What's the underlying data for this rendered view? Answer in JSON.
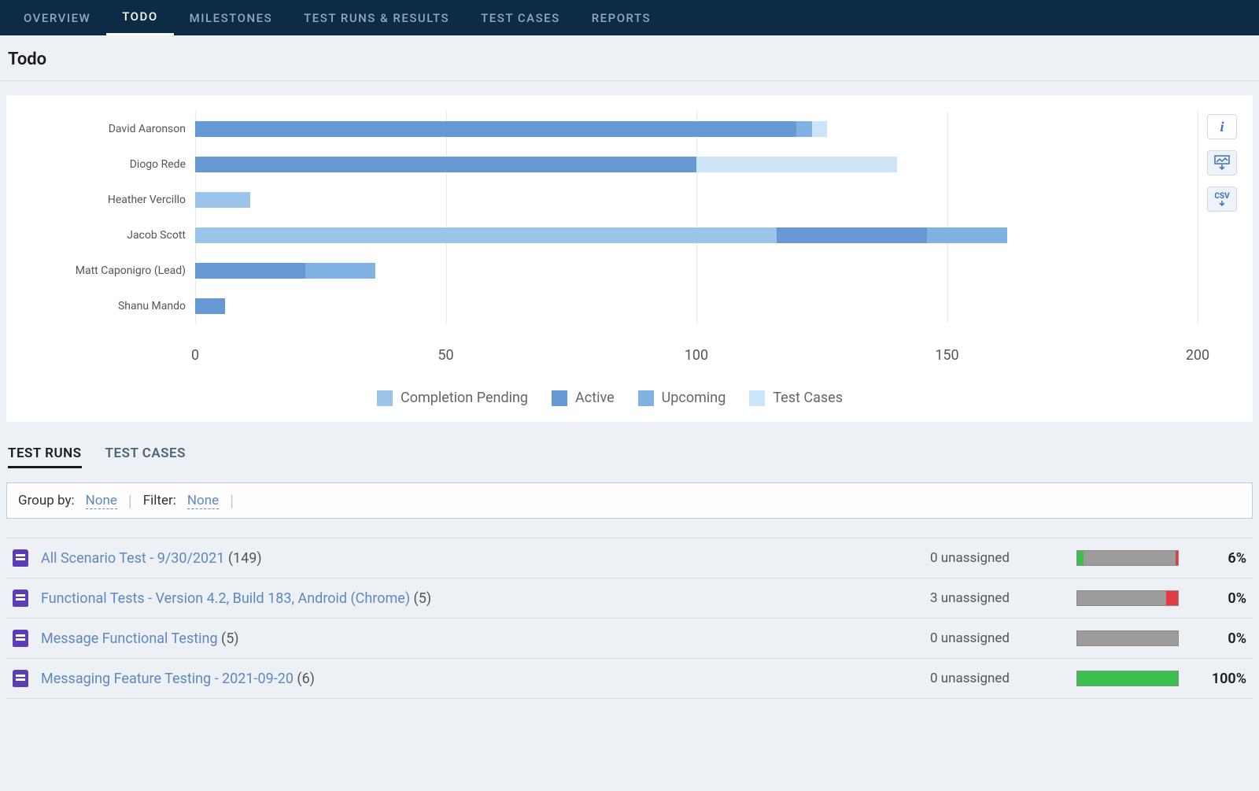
{
  "nav": {
    "items": [
      "OVERVIEW",
      "TODO",
      "MILESTONES",
      "TEST RUNS & RESULTS",
      "TEST CASES",
      "REPORTS"
    ],
    "active_index": 1
  },
  "page_title": "Todo",
  "chart": {
    "type": "stacked_horizontal_bar",
    "x_max": 200,
    "x_ticks": [
      0,
      50,
      100,
      150,
      200
    ],
    "grid_color": "#e8e8e8",
    "series": [
      {
        "label": "Completion Pending",
        "color": "#9cc3ea"
      },
      {
        "label": "Active",
        "color": "#6699d4"
      },
      {
        "label": "Upcoming",
        "color": "#7fb2e2"
      },
      {
        "label": "Test Cases",
        "color": "#cbe4f7"
      }
    ],
    "rows": [
      {
        "label": "David Aaronson",
        "values": [
          0,
          120,
          3,
          3
        ]
      },
      {
        "label": "Diogo Rede",
        "values": [
          0,
          100,
          0,
          40
        ]
      },
      {
        "label": "Heather Vercillo",
        "values": [
          11,
          0,
          0,
          0
        ]
      },
      {
        "label": "Jacob Scott",
        "values": [
          116,
          30,
          16,
          0
        ]
      },
      {
        "label": "Matt Caponigro (Lead)",
        "values": [
          0,
          22,
          14,
          0
        ]
      },
      {
        "label": "Shanu Mando",
        "values": [
          0,
          6,
          0,
          0
        ]
      }
    ],
    "label_color": "#555",
    "label_fontsize": 14,
    "tick_fontsize": 18,
    "legend_fontsize": 18
  },
  "chart_actions": {
    "info": "i",
    "image": "IMG",
    "csv": "CSV"
  },
  "sub_tabs": {
    "items": [
      "TEST RUNS",
      "TEST CASES"
    ],
    "active_index": 0
  },
  "filter_bar": {
    "group_by_label": "Group by:",
    "group_by_value": "None",
    "filter_label": "Filter:",
    "filter_value": "None"
  },
  "runs": [
    {
      "name": "All Scenario Test - 9/30/2021",
      "count": "(149)",
      "unassigned": "0 unassigned",
      "percent": "6%",
      "segments": [
        {
          "color": "#3bbf4e",
          "start": 0,
          "width": 6
        },
        {
          "color": "#9c9c9c",
          "start": 6,
          "width": 92
        },
        {
          "color": "#e63946",
          "start": 98,
          "width": 2
        }
      ]
    },
    {
      "name": "Functional Tests - Version 4.2, Build 183, Android (Chrome)",
      "count": "(5)",
      "unassigned": "3 unassigned",
      "percent": "0%",
      "segments": [
        {
          "color": "#9c9c9c",
          "start": 0,
          "width": 88
        },
        {
          "color": "#e63946",
          "start": 88,
          "width": 12
        }
      ]
    },
    {
      "name": "Message Functional Testing",
      "count": "(5)",
      "unassigned": "0 unassigned",
      "percent": "0%",
      "segments": [
        {
          "color": "#9c9c9c",
          "start": 0,
          "width": 100
        }
      ]
    },
    {
      "name": "Messaging Feature Testing - 2021-09-20",
      "count": "(6)",
      "unassigned": "0 unassigned",
      "percent": "100%",
      "segments": [
        {
          "color": "#3bbf4e",
          "start": 0,
          "width": 100
        }
      ]
    }
  ],
  "colors": {
    "nav_bg": "#0d2b45",
    "page_bg": "#edf1f6",
    "link": "#5d88c0",
    "icon_purple": "#5b3db5"
  }
}
